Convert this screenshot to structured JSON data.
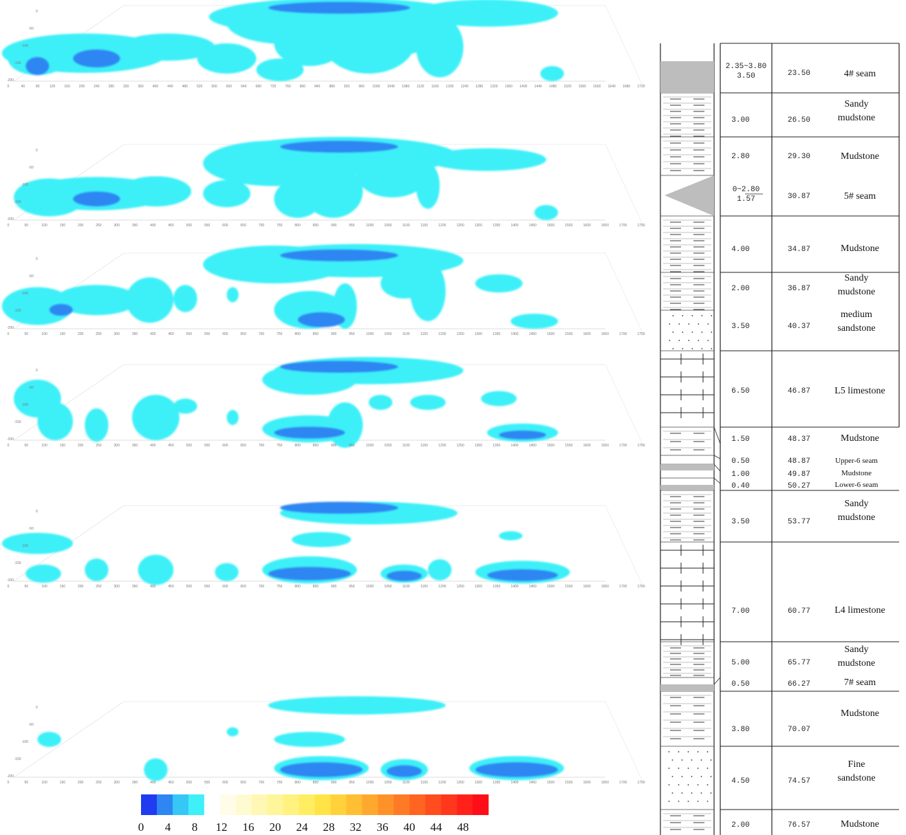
{
  "contour_layers": [
    {
      "x_ticks": [
        0,
        40,
        80,
        120,
        160,
        200,
        240,
        280,
        320,
        360,
        400,
        440,
        480,
        520,
        560,
        600,
        640,
        680,
        720,
        760,
        800,
        840,
        880,
        920,
        960,
        1000,
        1040,
        1080,
        1120,
        1160,
        1200,
        1240,
        1280,
        1320,
        1360,
        1400,
        1440,
        1480,
        1520,
        1560,
        1600,
        1640,
        1680,
        1720
      ],
      "y_ticks": [
        -200,
        -150,
        -100,
        -50,
        0
      ]
    },
    {
      "x_ticks": [
        0,
        50,
        100,
        150,
        200,
        250,
        300,
        350,
        400,
        450,
        500,
        550,
        600,
        650,
        700,
        750,
        800,
        850,
        900,
        950,
        1000,
        1050,
        1100,
        1150,
        1200,
        1250,
        1300,
        1350,
        1400,
        1450,
        1500,
        1550,
        1600,
        1650,
        1700,
        1750
      ],
      "y_ticks": [
        -200,
        -150,
        -100,
        -50,
        0
      ]
    },
    {
      "x_ticks": [
        0,
        50,
        100,
        150,
        200,
        250,
        300,
        350,
        400,
        450,
        500,
        550,
        600,
        650,
        700,
        750,
        800,
        850,
        900,
        950,
        1000,
        1050,
        1100,
        1150,
        1200,
        1250,
        1300,
        1350,
        1400,
        1450,
        1500,
        1550,
        1600,
        1650,
        1700,
        1750
      ],
      "y_ticks": [
        -200,
        -150,
        -100,
        -50,
        0
      ]
    },
    {
      "x_ticks": [
        0,
        50,
        100,
        150,
        200,
        250,
        300,
        350,
        400,
        450,
        500,
        550,
        600,
        650,
        700,
        750,
        800,
        850,
        900,
        950,
        1000,
        1050,
        1100,
        1150,
        1200,
        1250,
        1300,
        1350,
        1400,
        1450,
        1500,
        1550,
        1600,
        1650,
        1700,
        1750
      ],
      "y_ticks": [
        -200,
        -150,
        -100,
        -50,
        0
      ]
    },
    {
      "x_ticks": [
        0,
        50,
        100,
        150,
        200,
        250,
        300,
        350,
        400,
        450,
        500,
        550,
        600,
        650,
        700,
        750,
        800,
        850,
        900,
        950,
        1000,
        1050,
        1100,
        1150,
        1200,
        1250,
        1300,
        1350,
        1400,
        1450,
        1500,
        1550,
        1600,
        1650,
        1700,
        1750
      ],
      "y_ticks": [
        -200,
        -150,
        -100,
        -50,
        0
      ]
    },
    {
      "x_ticks": [
        0,
        50,
        100,
        150,
        200,
        250,
        300,
        350,
        400,
        450,
        500,
        550,
        600,
        650,
        700,
        750,
        800,
        850,
        900,
        950,
        1000,
        1050,
        1100,
        1150,
        1200,
        1250,
        1300,
        1350,
        1400,
        1450,
        1500,
        1550,
        1600,
        1650,
        1700,
        1750
      ],
      "y_ticks": [
        -200,
        -150,
        -100,
        -50,
        0
      ]
    }
  ],
  "colorbar": {
    "labels": [
      "0",
      "4",
      "8",
      "12",
      "16",
      "20",
      "24",
      "28",
      "32",
      "36",
      "40",
      "44",
      "48"
    ],
    "colors": [
      "#1f3cf0",
      "#2e86f2",
      "#35c7f5",
      "#3ef0f8",
      "#ffffff",
      "#fffde8",
      "#fffbd0",
      "#fff8b4",
      "#fff59a",
      "#fff27e",
      "#ffee62",
      "#ffe447",
      "#ffd23c",
      "#ffbe34",
      "#ffa82e",
      "#ff9129",
      "#ff7a24",
      "#ff6421",
      "#ff4d1e",
      "#ff371c",
      "#ff211a",
      "#ff0d18"
    ]
  },
  "strata": [
    {
      "thickness": "2.35~3.80",
      "thickness2": "3.50",
      "depth": "23.50",
      "name": "4# seam"
    },
    {
      "thickness": "3.00",
      "depth": "26.50",
      "name": "Sandy mudstone"
    },
    {
      "thickness": "2.80",
      "depth": "29.30",
      "name": "Mudstone"
    },
    {
      "thickness": "0~2.80",
      "thickness2": "1.57",
      "depth": "30.87",
      "name": "5# seam"
    },
    {
      "thickness": "4.00",
      "depth": "34.87",
      "name": "Mudstone"
    },
    {
      "thickness": "2.00",
      "depth": "36.87",
      "name": "Sandy mudstone"
    },
    {
      "thickness": "3.50",
      "depth": "40.37",
      "name": "medium sandstone"
    },
    {
      "thickness": "6.50",
      "depth": "46.87",
      "name": "L5 limestone"
    },
    {
      "thickness": "1.50",
      "depth": "48.37",
      "name": "Mudstone"
    },
    {
      "thickness": "0.50",
      "depth": "48.87",
      "name": "Upper-6 seam"
    },
    {
      "thickness": "1.00",
      "depth": "49.87",
      "name": "Mudstone"
    },
    {
      "thickness": "0.40",
      "depth": "50.27",
      "name": "Lower-6 seam"
    },
    {
      "thickness": "3.50",
      "depth": "53.77",
      "name": "Sandy mudstone"
    },
    {
      "thickness": "7.00",
      "depth": "60.77",
      "name": "L4 limestone"
    },
    {
      "thickness": "5.00",
      "depth": "65.77",
      "name": "Sandy mudstone"
    },
    {
      "thickness": "0.50",
      "depth": "66.27",
      "name": "7# seam"
    },
    {
      "thickness": "3.80",
      "depth": "70.07",
      "name": "Mudstone"
    },
    {
      "thickness": "4.50",
      "depth": "74.57",
      "name": "Fine sandstone"
    },
    {
      "thickness": "2.00",
      "depth": "76.57",
      "name": "Mudstone"
    }
  ]
}
